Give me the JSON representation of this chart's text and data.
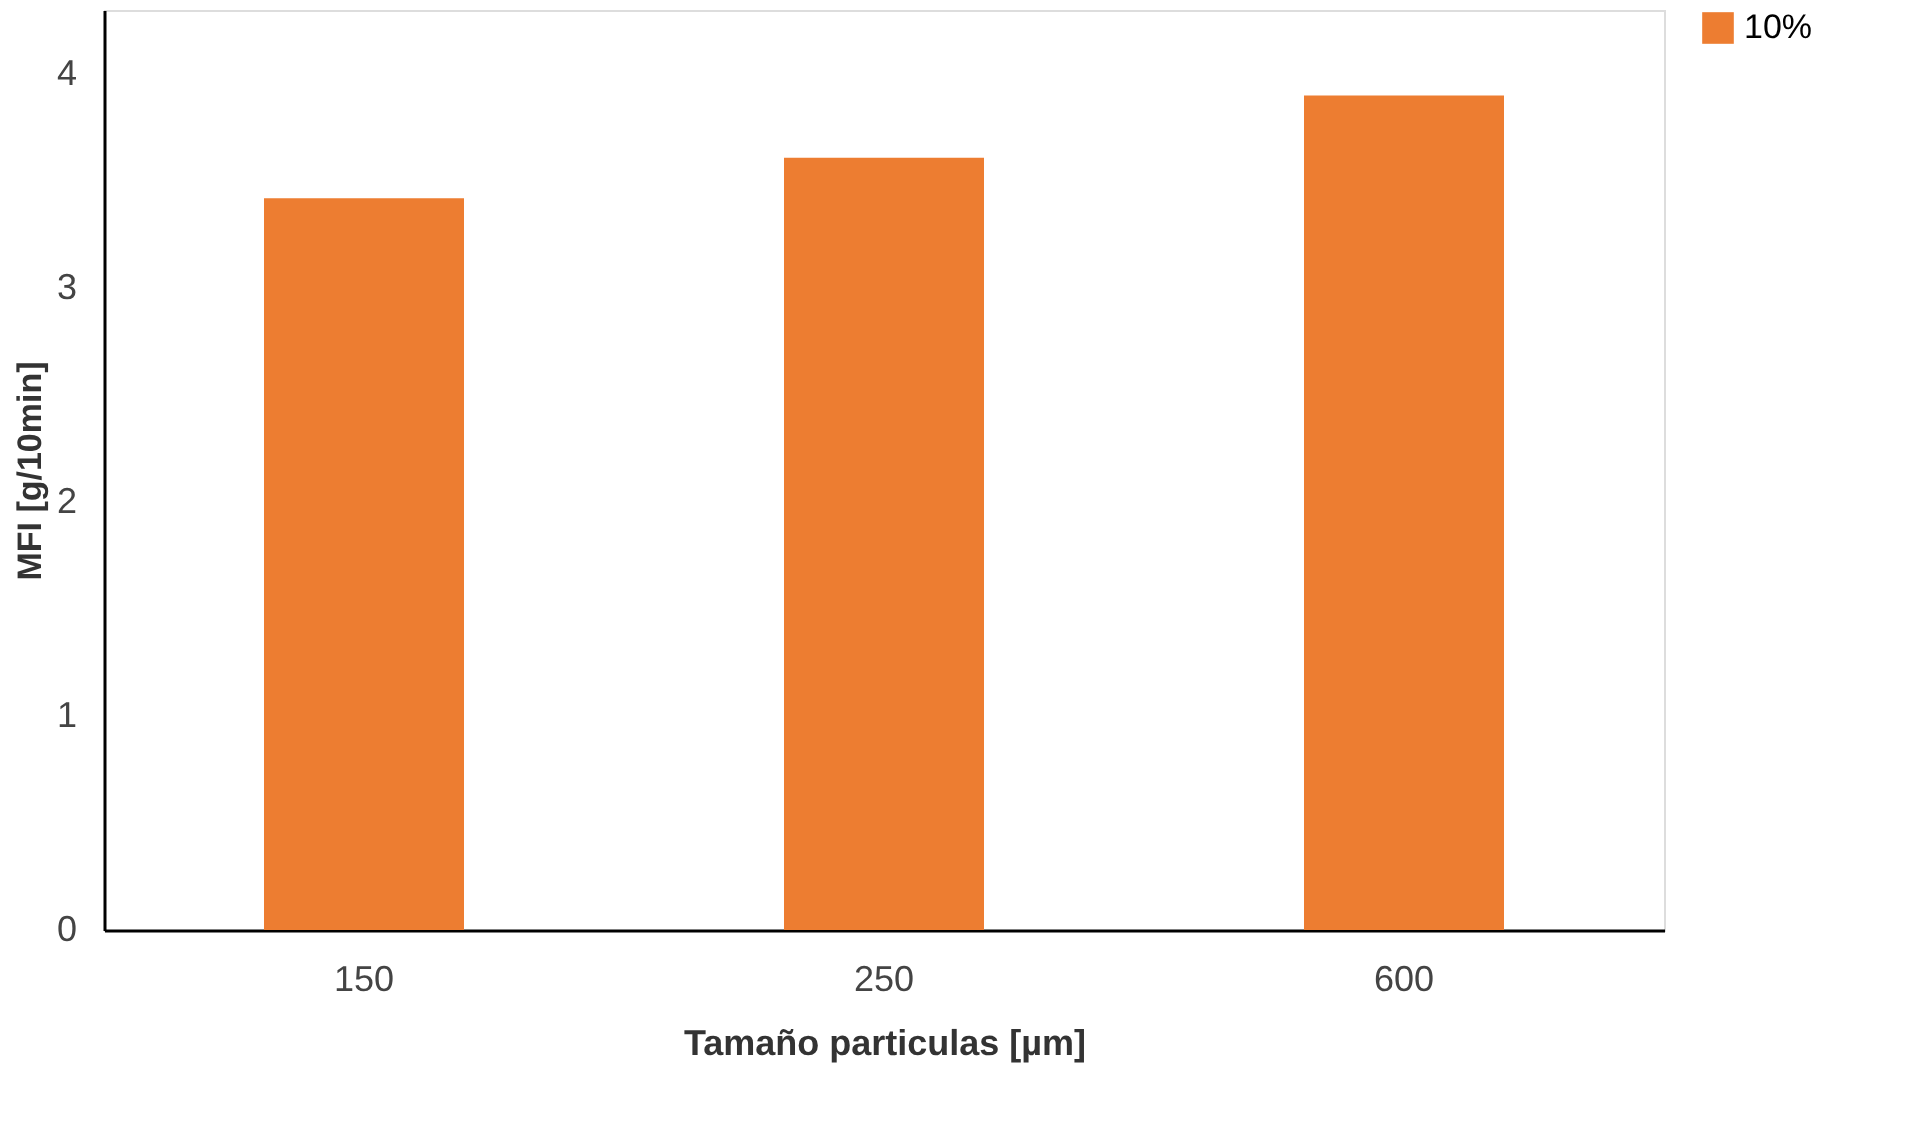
{
  "chart_data": {
    "type": "bar",
    "xlabel": "Tamaño particulas [µm]",
    "ylabel": "MFI [g/10min]",
    "categories": [
      "150",
      "250",
      "600"
    ],
    "series": [
      {
        "name": "10%",
        "color": "#ed7d31",
        "values": [
          3.42,
          3.61,
          3.9
        ]
      }
    ],
    "ylim": [
      0,
      4.3
    ],
    "yticks": [
      0,
      1,
      2,
      3,
      4
    ],
    "grid": false,
    "legend": "right"
  }
}
